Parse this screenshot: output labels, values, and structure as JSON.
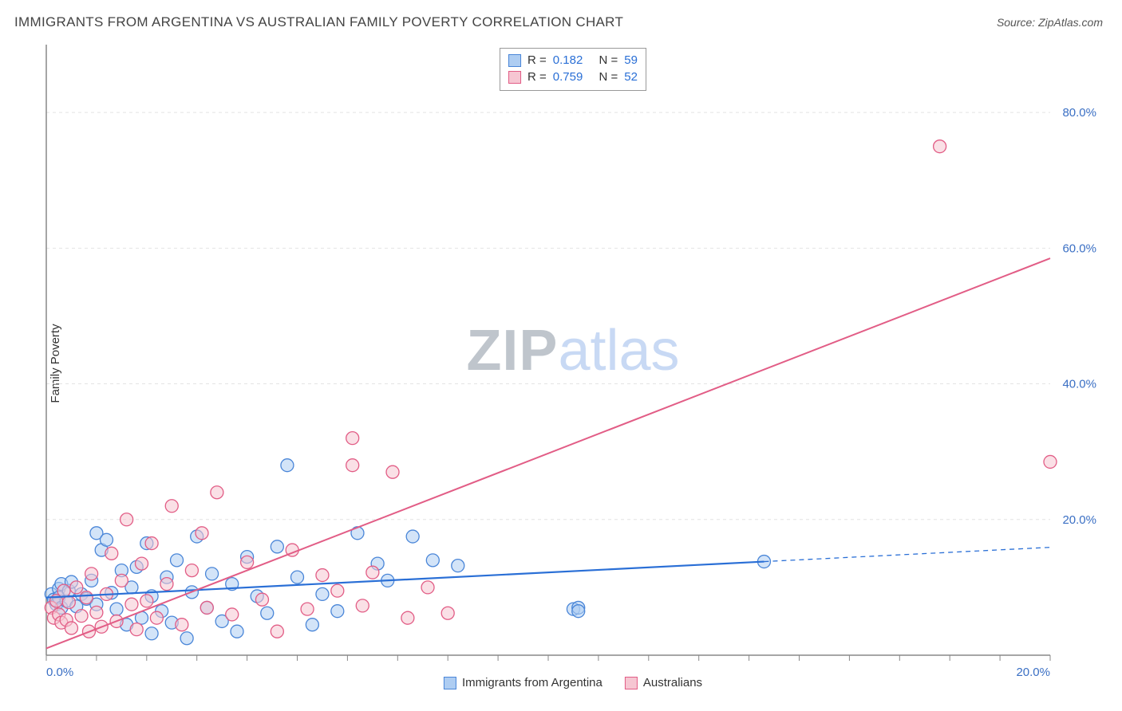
{
  "title": "IMMIGRANTS FROM ARGENTINA VS AUSTRALIAN FAMILY POVERTY CORRELATION CHART",
  "source_label": "Source: ZipAtlas.com",
  "watermark": {
    "part1": "ZIP",
    "part2": "atlas"
  },
  "ylabel": "Family Poverty",
  "legend_top": {
    "rows": [
      {
        "swatch_fill": "#aecdf2",
        "swatch_border": "#4a86d8",
        "r_label": "R =",
        "r_val": "0.182",
        "n_label": "N =",
        "n_val": "59"
      },
      {
        "swatch_fill": "#f6c6d2",
        "swatch_border": "#e25d86",
        "r_label": "R =",
        "r_val": "0.759",
        "n_label": "N =",
        "n_val": "52"
      }
    ]
  },
  "legend_bottom": {
    "items": [
      {
        "swatch_fill": "#aecdf2",
        "swatch_border": "#4a86d8",
        "label": "Immigrants from Argentina"
      },
      {
        "swatch_fill": "#f6c6d2",
        "swatch_border": "#e25d86",
        "label": "Australians"
      }
    ]
  },
  "chart": {
    "type": "scatter",
    "background_color": "#ffffff",
    "axis_color": "#888888",
    "grid_color": "#e4e4e4",
    "tick_color": "#888888",
    "tick_label_color": "#3a6fc4",
    "xlim": [
      0,
      20
    ],
    "ylim": [
      0,
      90
    ],
    "x_ticks": [
      0,
      1,
      2,
      3,
      4,
      5,
      6,
      7,
      8,
      9,
      10,
      11,
      12,
      13,
      14,
      15,
      16,
      17,
      18,
      19,
      20
    ],
    "x_tick_labels": {
      "0": "0.0%",
      "20": "20.0%"
    },
    "y_grid": [
      20,
      40,
      60,
      80
    ],
    "y_tick_labels": {
      "20": "20.0%",
      "40": "40.0%",
      "60": "60.0%",
      "80": "80.0%"
    },
    "marker_radius": 8,
    "marker_opacity": 0.55,
    "series": [
      {
        "name": "argentina",
        "fill": "#aecdf2",
        "stroke": "#4a86d8",
        "points": [
          [
            0.1,
            9
          ],
          [
            0.15,
            8.2
          ],
          [
            0.2,
            7.5
          ],
          [
            0.25,
            9.8
          ],
          [
            0.25,
            8.5
          ],
          [
            0.3,
            7
          ],
          [
            0.3,
            10.5
          ],
          [
            0.4,
            8
          ],
          [
            0.45,
            9.5
          ],
          [
            0.5,
            10.8
          ],
          [
            0.6,
            7.2
          ],
          [
            0.7,
            9
          ],
          [
            0.8,
            8.3
          ],
          [
            0.9,
            11
          ],
          [
            1.0,
            18
          ],
          [
            1.0,
            7.5
          ],
          [
            1.1,
            15.5
          ],
          [
            1.2,
            17
          ],
          [
            1.3,
            9.2
          ],
          [
            1.4,
            6.8
          ],
          [
            1.5,
            12.5
          ],
          [
            1.6,
            4.5
          ],
          [
            1.7,
            10
          ],
          [
            1.8,
            13
          ],
          [
            1.9,
            5.5
          ],
          [
            2.0,
            16.5
          ],
          [
            2.1,
            8.7
          ],
          [
            2.1,
            3.2
          ],
          [
            2.3,
            6.5
          ],
          [
            2.4,
            11.5
          ],
          [
            2.5,
            4.8
          ],
          [
            2.6,
            14
          ],
          [
            2.8,
            2.5
          ],
          [
            2.9,
            9.3
          ],
          [
            3.0,
            17.5
          ],
          [
            3.2,
            7
          ],
          [
            3.3,
            12
          ],
          [
            3.5,
            5
          ],
          [
            3.7,
            10.5
          ],
          [
            3.8,
            3.5
          ],
          [
            4.0,
            14.5
          ],
          [
            4.2,
            8.7
          ],
          [
            4.4,
            6.2
          ],
          [
            4.6,
            16
          ],
          [
            4.8,
            28
          ],
          [
            5.0,
            11.5
          ],
          [
            5.3,
            4.5
          ],
          [
            5.5,
            9
          ],
          [
            5.8,
            6.5
          ],
          [
            6.2,
            18
          ],
          [
            6.6,
            13.5
          ],
          [
            6.8,
            11
          ],
          [
            7.3,
            17.5
          ],
          [
            7.7,
            14
          ],
          [
            8.2,
            13.2
          ],
          [
            10.5,
            6.8
          ],
          [
            10.6,
            7
          ],
          [
            10.6,
            6.5
          ],
          [
            14.3,
            13.8
          ]
        ],
        "trend": {
          "x1": 0,
          "y1": 8.5,
          "x2": 14.3,
          "y2": 13.8,
          "extend_x": 20,
          "extend_y": 15.9,
          "color": "#2a6fd6",
          "width": 2.2
        }
      },
      {
        "name": "australians",
        "fill": "#f6c6d2",
        "stroke": "#e25d86",
        "points": [
          [
            0.1,
            7
          ],
          [
            0.15,
            5.5
          ],
          [
            0.2,
            8
          ],
          [
            0.25,
            6
          ],
          [
            0.3,
            4.8
          ],
          [
            0.35,
            9.5
          ],
          [
            0.4,
            5.2
          ],
          [
            0.45,
            7.8
          ],
          [
            0.5,
            4
          ],
          [
            0.6,
            10
          ],
          [
            0.7,
            5.8
          ],
          [
            0.8,
            8.5
          ],
          [
            0.85,
            3.5
          ],
          [
            0.9,
            12
          ],
          [
            1.0,
            6.3
          ],
          [
            1.1,
            4.2
          ],
          [
            1.2,
            9
          ],
          [
            1.3,
            15
          ],
          [
            1.4,
            5
          ],
          [
            1.5,
            11
          ],
          [
            1.6,
            20
          ],
          [
            1.7,
            7.5
          ],
          [
            1.8,
            3.8
          ],
          [
            1.9,
            13.5
          ],
          [
            2.0,
            8
          ],
          [
            2.1,
            16.5
          ],
          [
            2.2,
            5.5
          ],
          [
            2.4,
            10.5
          ],
          [
            2.5,
            22
          ],
          [
            2.7,
            4.5
          ],
          [
            2.9,
            12.5
          ],
          [
            3.1,
            18
          ],
          [
            3.2,
            7
          ],
          [
            3.4,
            24
          ],
          [
            3.7,
            6
          ],
          [
            4.0,
            13.7
          ],
          [
            4.3,
            8.2
          ],
          [
            4.6,
            3.5
          ],
          [
            4.9,
            15.5
          ],
          [
            5.2,
            6.8
          ],
          [
            5.5,
            11.8
          ],
          [
            5.8,
            9.5
          ],
          [
            6.1,
            28
          ],
          [
            6.1,
            32
          ],
          [
            6.3,
            7.3
          ],
          [
            6.5,
            12.2
          ],
          [
            6.9,
            27
          ],
          [
            7.2,
            5.5
          ],
          [
            7.6,
            10
          ],
          [
            8.0,
            6.2
          ],
          [
            17.8,
            75
          ],
          [
            20,
            28.5
          ]
        ],
        "trend": {
          "x1": 0,
          "y1": 1,
          "x2": 20,
          "y2": 58.5,
          "color": "#e25d86",
          "width": 2
        }
      }
    ]
  }
}
